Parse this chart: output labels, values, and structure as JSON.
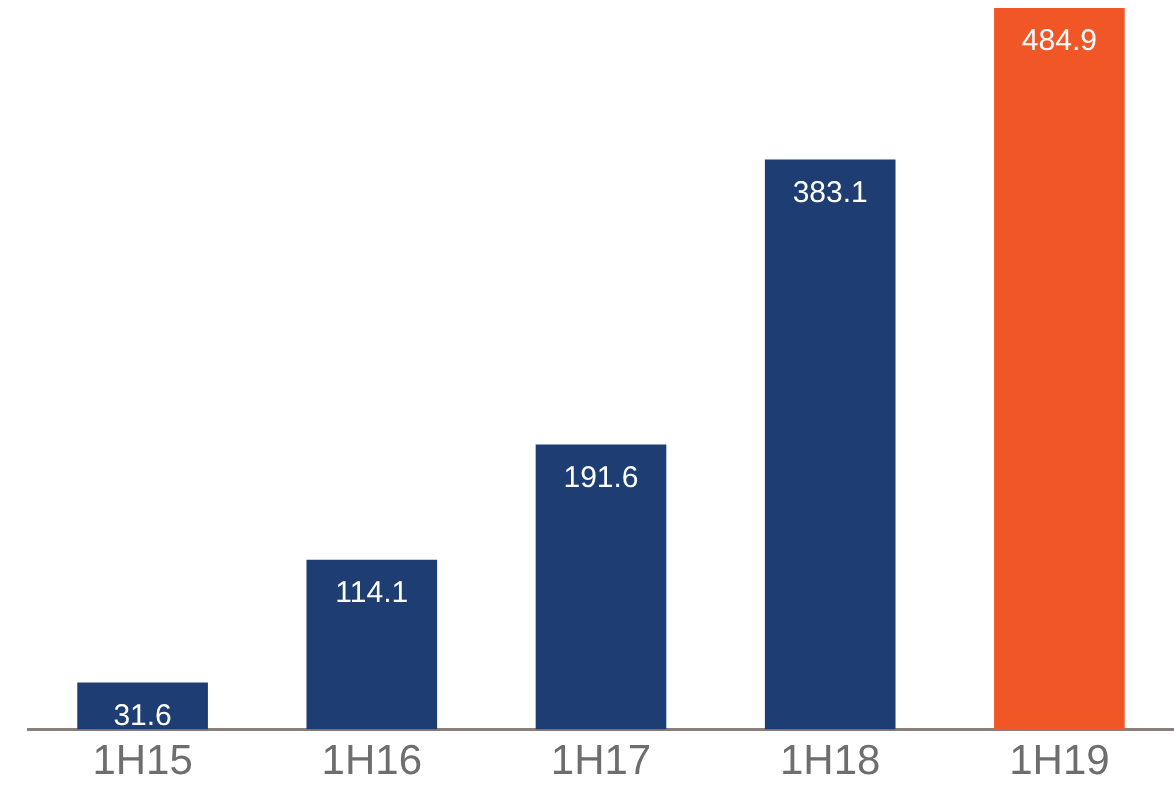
{
  "chart_data": {
    "type": "bar",
    "categories": [
      "1H15",
      "1H16",
      "1H17",
      "1H18",
      "1H19"
    ],
    "values": [
      31.6,
      114.1,
      191.6,
      383.1,
      484.9
    ],
    "colors": [
      "#1d3d73",
      "#1d3d73",
      "#1d3d73",
      "#1d3d73",
      "#f15627"
    ],
    "data_labels": true,
    "grid": false,
    "legend": false
  }
}
